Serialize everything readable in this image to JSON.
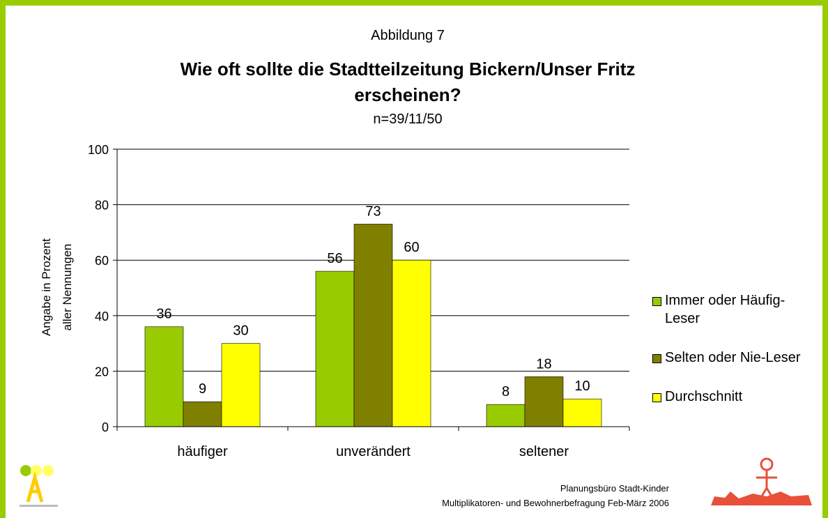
{
  "chart_data": {
    "type": "bar",
    "pretitle": "Abbildung 7",
    "title": "Wie oft sollte die Stadtteilzeitung Bickern/Unser Fritz erscheinen?",
    "subtitle": "n=39/11/50",
    "y_label": [
      "Angabe in Prozent",
      "aller Nennungen"
    ],
    "categories": [
      "häufiger",
      "unverändert",
      "seltener"
    ],
    "series": [
      {
        "name": "Immer oder Häufig-Leser",
        "color": "#99cc00",
        "values": [
          36,
          56,
          8
        ]
      },
      {
        "name": "Selten oder Nie-Leser",
        "color": "#808000",
        "values": [
          9,
          73,
          18
        ]
      },
      {
        "name": "Durchschnitt",
        "color": "#ffff00",
        "values": [
          30,
          60,
          10
        ]
      }
    ],
    "ylim": [
      0,
      100
    ],
    "yticks": [
      0,
      20,
      40,
      60,
      80,
      100
    ],
    "grid": true,
    "legend": "right"
  },
  "footer": {
    "lines": [
      "Planungsbüro Stadt-Kinder",
      "Multiplikatoren- und Bewohnerbefragung Feb-März 2006"
    ]
  }
}
